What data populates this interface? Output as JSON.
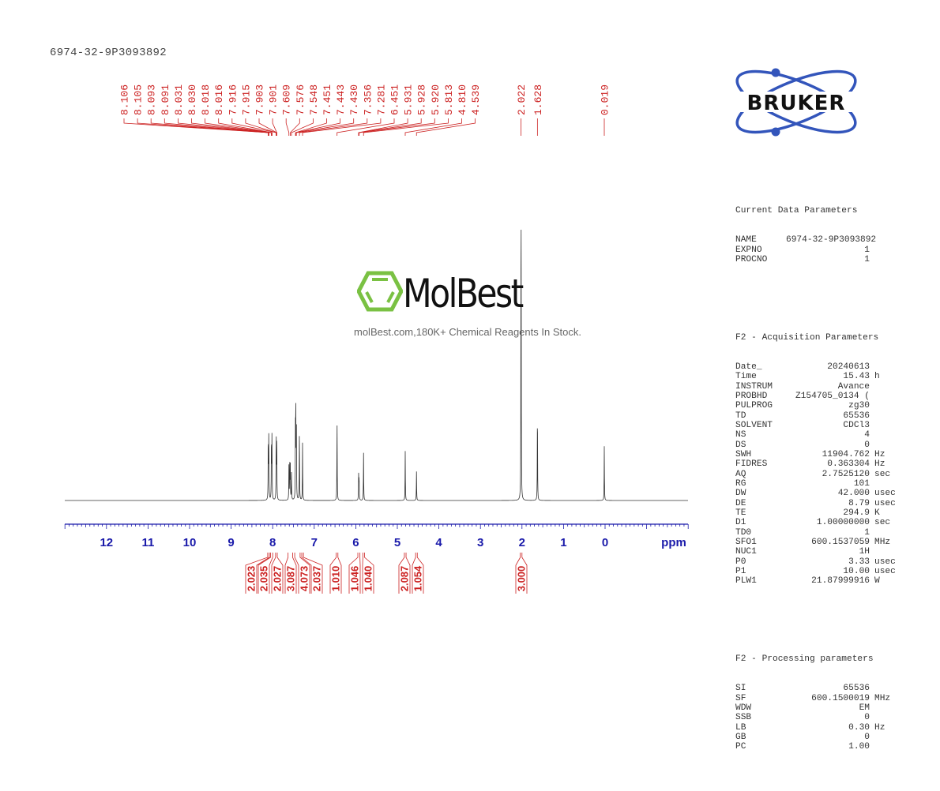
{
  "header": {
    "sample_name": "6974-32-9P3093892"
  },
  "logo": {
    "brand": "BRUKER",
    "accent_color": "#3355bb"
  },
  "watermark": {
    "brand": "MolBest",
    "tagline": "molBest.com,180K+ Chemical Reagents In Stock.",
    "brand_color": "#7ac143"
  },
  "parameters": {
    "current": {
      "title": "Current Data Parameters",
      "rows": [
        {
          "key": "NAME",
          "value": "6974-32-9P3093892",
          "unit": ""
        },
        {
          "key": "EXPNO",
          "value": "1",
          "unit": ""
        },
        {
          "key": "PROCNO",
          "value": "1",
          "unit": ""
        }
      ]
    },
    "acquisition": {
      "title": "F2 - Acquisition Parameters",
      "rows": [
        {
          "key": "Date_",
          "value": "20240613",
          "unit": ""
        },
        {
          "key": "Time",
          "value": "15.43",
          "unit": "h"
        },
        {
          "key": "INSTRUM",
          "value": "Avance",
          "unit": ""
        },
        {
          "key": "PROBHD",
          "value": "Z154705_0134 (",
          "unit": ""
        },
        {
          "key": "PULPROG",
          "value": "zg30",
          "unit": ""
        },
        {
          "key": "TD",
          "value": "65536",
          "unit": ""
        },
        {
          "key": "SOLVENT",
          "value": "CDCl3",
          "unit": ""
        },
        {
          "key": "NS",
          "value": "4",
          "unit": ""
        },
        {
          "key": "DS",
          "value": "0",
          "unit": ""
        },
        {
          "key": "SWH",
          "value": "11904.762",
          "unit": "Hz"
        },
        {
          "key": "FIDRES",
          "value": "0.363304",
          "unit": "Hz"
        },
        {
          "key": "AQ",
          "value": "2.7525120",
          "unit": "sec"
        },
        {
          "key": "RG",
          "value": "101",
          "unit": ""
        },
        {
          "key": "DW",
          "value": "42.000",
          "unit": "usec"
        },
        {
          "key": "DE",
          "value": "8.79",
          "unit": "usec"
        },
        {
          "key": "TE",
          "value": "294.9",
          "unit": "K"
        },
        {
          "key": "D1",
          "value": "1.00000000",
          "unit": "sec"
        },
        {
          "key": "TD0",
          "value": "1",
          "unit": ""
        },
        {
          "key": "SFO1",
          "value": "600.1537059",
          "unit": "MHz"
        },
        {
          "key": "NUC1",
          "value": "1H",
          "unit": ""
        },
        {
          "key": "P0",
          "value": "3.33",
          "unit": "usec"
        },
        {
          "key": "P1",
          "value": "10.00",
          "unit": "usec"
        },
        {
          "key": "PLW1",
          "value": "21.87999916",
          "unit": "W"
        }
      ]
    },
    "processing": {
      "title": "F2 - Processing parameters",
      "rows": [
        {
          "key": "SI",
          "value": "65536",
          "unit": ""
        },
        {
          "key": "SF",
          "value": "600.1500019",
          "unit": "MHz"
        },
        {
          "key": "WDW",
          "value": "EM",
          "unit": ""
        },
        {
          "key": "SSB",
          "value": "0",
          "unit": ""
        },
        {
          "key": "LB",
          "value": "0.30",
          "unit": "Hz"
        },
        {
          "key": "GB",
          "value": "0",
          "unit": ""
        },
        {
          "key": "PC",
          "value": "1.00",
          "unit": ""
        }
      ]
    }
  },
  "chart_data": {
    "type": "line",
    "title": "6974-32-9P3093892",
    "xlabel": "ppm",
    "ylabel": "",
    "xlim": [
      13,
      -2
    ],
    "x_reversed": true,
    "grid": false,
    "x_ticks": [
      12,
      11,
      10,
      9,
      8,
      7,
      6,
      5,
      4,
      3,
      2,
      1,
      0
    ],
    "axis_color": "#1a1aaa",
    "label_color": "#cc2222",
    "peak_labels": [
      "8.106",
      "8.105",
      "8.093",
      "8.091",
      "8.031",
      "8.030",
      "8.018",
      "8.016",
      "7.916",
      "7.915",
      "7.903",
      "7.901",
      "7.609",
      "7.576",
      "7.548",
      "7.451",
      "7.443",
      "7.430",
      "7.356",
      "7.281",
      "6.451",
      "5.931",
      "5.928",
      "5.920",
      "5.813",
      "4.810",
      "4.539",
      "2.022",
      "1.628",
      "0.019"
    ],
    "peaks": [
      {
        "ppm": 8.106,
        "height": 0.19
      },
      {
        "ppm": 8.093,
        "height": 0.19
      },
      {
        "ppm": 8.03,
        "height": 0.19
      },
      {
        "ppm": 8.017,
        "height": 0.19
      },
      {
        "ppm": 7.915,
        "height": 0.19
      },
      {
        "ppm": 7.902,
        "height": 0.19
      },
      {
        "ppm": 7.609,
        "height": 0.1
      },
      {
        "ppm": 7.59,
        "height": 0.1
      },
      {
        "ppm": 7.576,
        "height": 0.1
      },
      {
        "ppm": 7.548,
        "height": 0.08
      },
      {
        "ppm": 7.451,
        "height": 0.23
      },
      {
        "ppm": 7.443,
        "height": 0.22
      },
      {
        "ppm": 7.43,
        "height": 0.22
      },
      {
        "ppm": 7.356,
        "height": 0.21
      },
      {
        "ppm": 7.281,
        "height": 0.17
      },
      {
        "ppm": 6.451,
        "height": 0.246
      },
      {
        "ppm": 5.931,
        "height": 0.075
      },
      {
        "ppm": 5.92,
        "height": 0.07
      },
      {
        "ppm": 5.813,
        "height": 0.14
      },
      {
        "ppm": 4.81,
        "height": 0.145
      },
      {
        "ppm": 4.539,
        "height": 0.085
      },
      {
        "ppm": 2.022,
        "height": 1.0
      },
      {
        "ppm": 1.628,
        "height": 0.277
      },
      {
        "ppm": 0.019,
        "height": 0.159
      }
    ],
    "integrals": [
      {
        "value": "2.023",
        "range": [
          8.12,
          8.08
        ]
      },
      {
        "value": "2.035",
        "range": [
          8.05,
          8.0
        ]
      },
      {
        "value": "2.027",
        "range": [
          7.93,
          7.89
        ]
      },
      {
        "value": "3.087",
        "range": [
          7.63,
          7.52
        ]
      },
      {
        "value": "4.073",
        "range": [
          7.47,
          7.34
        ]
      },
      {
        "value": "2.037",
        "range": [
          7.3,
          7.26
        ]
      },
      {
        "value": "1.010",
        "range": [
          6.47,
          6.43
        ]
      },
      {
        "value": "1.046",
        "range": [
          5.95,
          5.9
        ]
      },
      {
        "value": "1.040",
        "range": [
          5.83,
          5.79
        ]
      },
      {
        "value": "2.087",
        "range": [
          4.83,
          4.79
        ]
      },
      {
        "value": "1.054",
        "range": [
          4.56,
          4.52
        ]
      },
      {
        "value": "3.000",
        "range": [
          2.04,
          2.0
        ]
      }
    ]
  }
}
